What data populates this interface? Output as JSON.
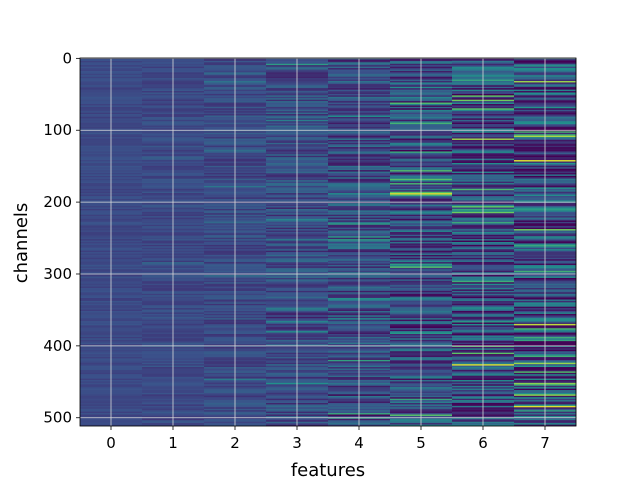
{
  "chart_data": {
    "type": "heatmap",
    "xlabel": "features",
    "ylabel": "channels",
    "x_ticks": [
      "0",
      "1",
      "2",
      "3",
      "4",
      "5",
      "6",
      "7"
    ],
    "y_ticks": [
      "0",
      "100",
      "200",
      "300",
      "400",
      "500"
    ],
    "y_tick_values": [
      0,
      100,
      200,
      300,
      400,
      500
    ],
    "columns": 8,
    "rows": 512,
    "xlim": [
      -0.5,
      7.5
    ],
    "ylim": [
      511.5,
      -0.5
    ],
    "y_inverted": true,
    "grid": true,
    "colormap": "viridis",
    "column_intensity": [
      0.08,
      0.12,
      0.18,
      0.28,
      0.38,
      0.48,
      0.55,
      0.6
    ],
    "highlight_rows": [
      {
        "column": 3,
        "row": 8,
        "value": 0.55
      },
      {
        "column": 3,
        "row": 452,
        "value": 0.5
      },
      {
        "column": 4,
        "row": 230,
        "value": 0.55
      },
      {
        "column": 4,
        "row": 495,
        "value": 0.6
      },
      {
        "column": 4,
        "row": 500,
        "value": 0.55
      },
      {
        "column": 5,
        "row": 70,
        "value": 0.0
      },
      {
        "column": 5,
        "row": 130,
        "value": 0.6
      },
      {
        "column": 5,
        "row": 188,
        "value": 0.95
      },
      {
        "column": 5,
        "row": 290,
        "value": 0.7
      },
      {
        "column": 5,
        "row": 375,
        "value": 0.0
      },
      {
        "column": 6,
        "row": 113,
        "value": 0.85
      },
      {
        "column": 6,
        "row": 190,
        "value": 0.05
      },
      {
        "column": 6,
        "row": 400,
        "value": 0.7
      },
      {
        "column": 6,
        "row": 427,
        "value": 0.95
      },
      {
        "column": 7,
        "row": 143,
        "value": 0.95
      },
      {
        "column": 7,
        "row": 260,
        "value": 0.6
      },
      {
        "column": 7,
        "row": 370,
        "value": 0.9
      },
      {
        "column": 7,
        "row": 436,
        "value": 0.7
      },
      {
        "column": 7,
        "row": 485,
        "value": 0.95
      }
    ]
  }
}
